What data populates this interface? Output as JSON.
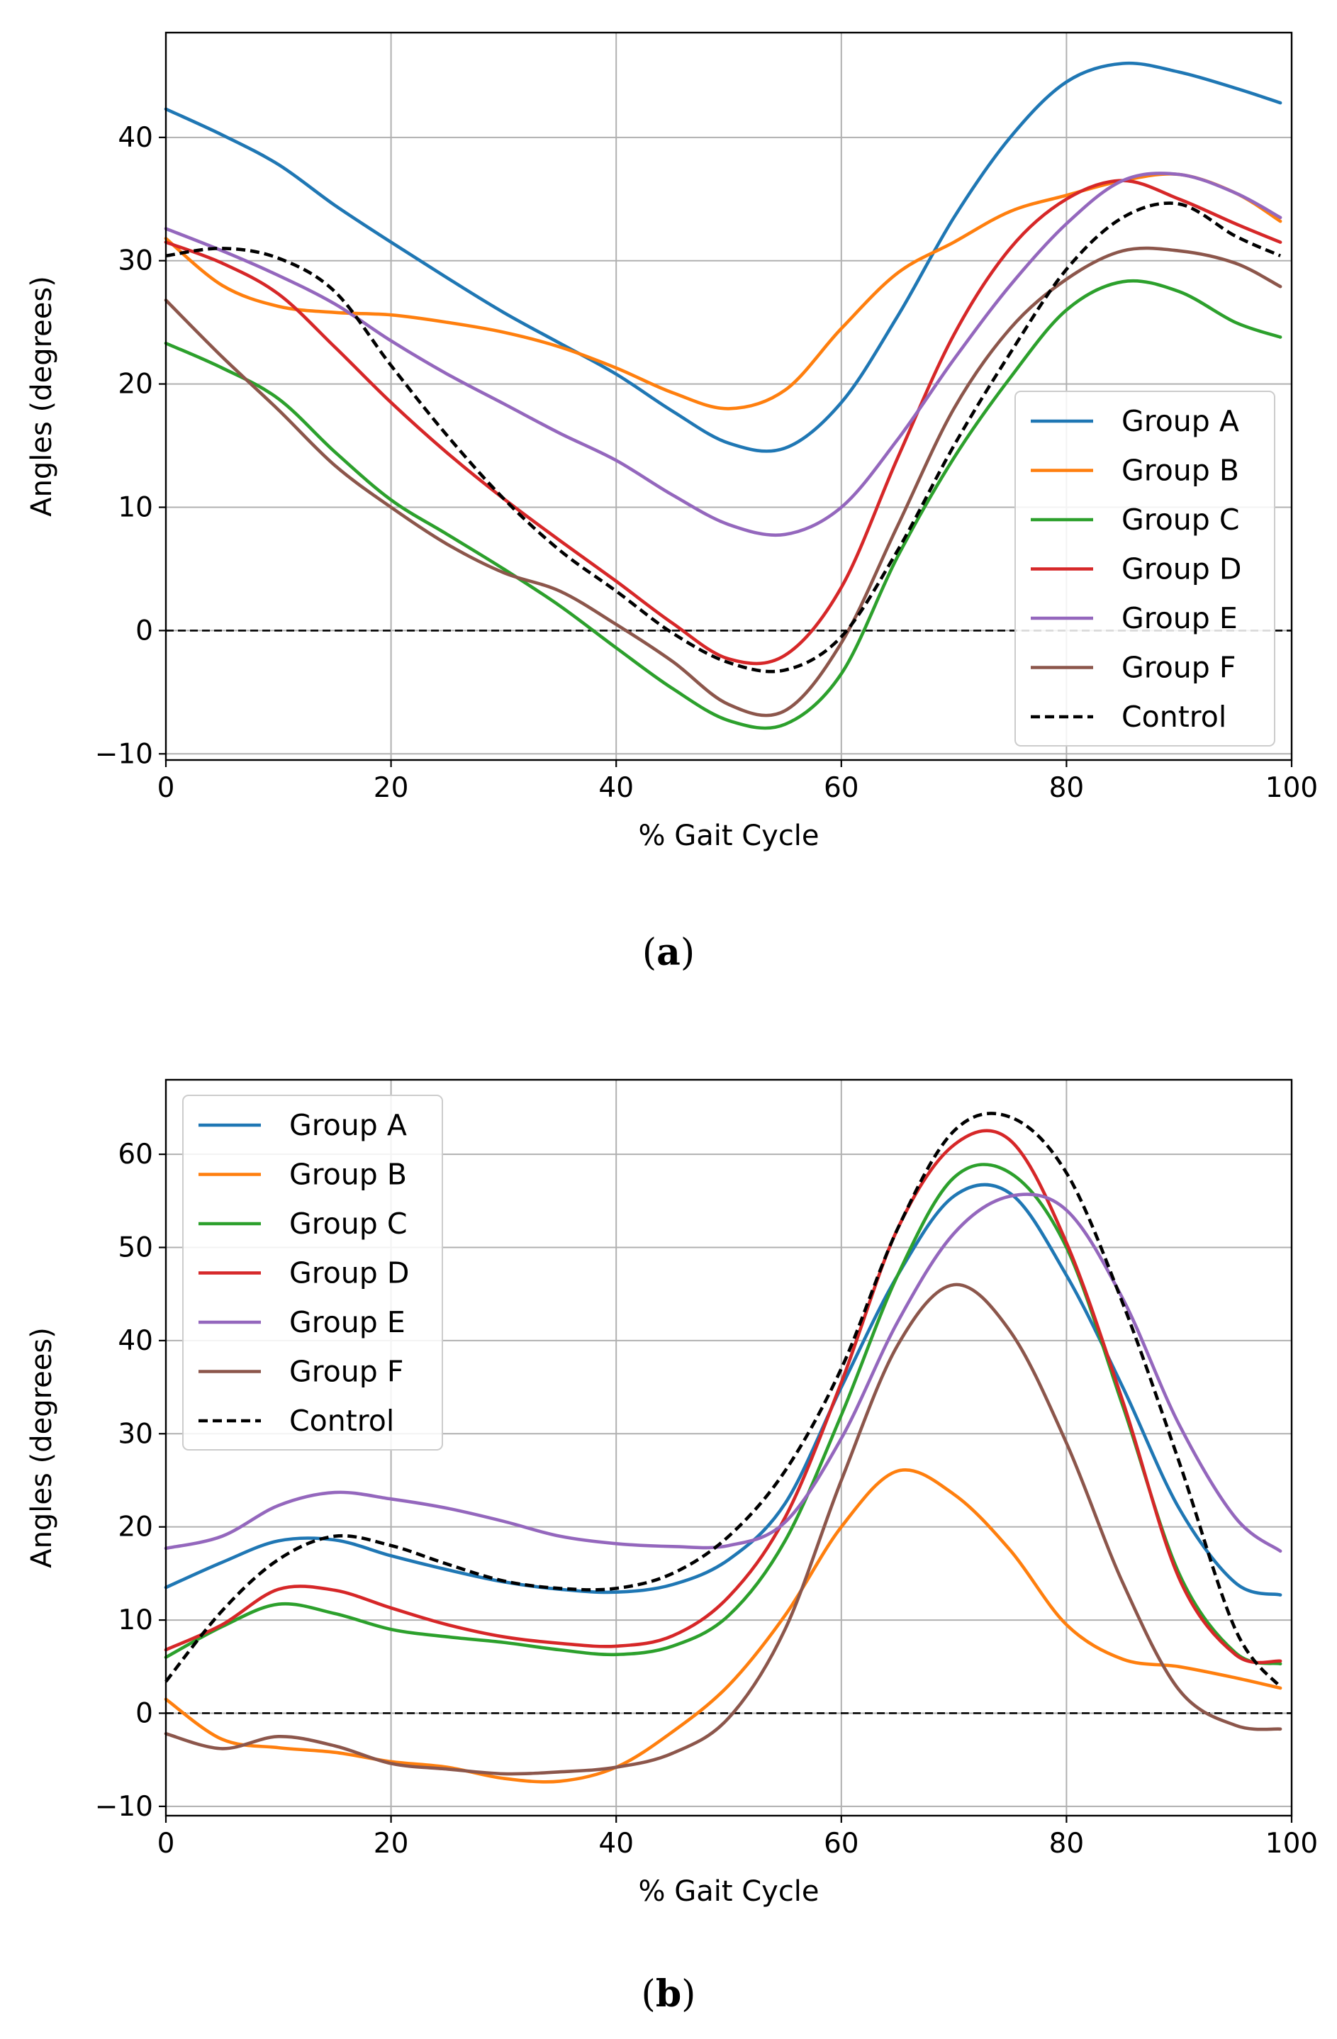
{
  "chart_data": [
    {
      "type": "line",
      "panel_label": "a",
      "xlabel": "% Gait Cycle",
      "ylabel": "Angles (degrees)",
      "xlim": [
        0,
        100
      ],
      "ylim": [
        -10.5,
        48.5
      ],
      "xticks": [
        0,
        20,
        40,
        60,
        80,
        100
      ],
      "yticks": [
        -10,
        0,
        10,
        20,
        30,
        40
      ],
      "ytick_labels": [
        "−10",
        "0",
        "10",
        "20",
        "30",
        "40"
      ],
      "grid": true,
      "legend_position": "lower-right",
      "zero_line": true,
      "x": [
        0,
        5,
        10,
        15,
        20,
        25,
        30,
        35,
        40,
        45,
        50,
        55,
        60,
        65,
        70,
        75,
        80,
        85,
        90,
        95,
        99
      ],
      "series": [
        {
          "name": "Group A",
          "color": "#1f77b4",
          "dashed": false,
          "values": [
            42.3,
            40.2,
            37.8,
            34.5,
            31.5,
            28.6,
            25.8,
            23.3,
            20.8,
            17.8,
            15.2,
            14.8,
            18.5,
            25.5,
            33.5,
            40.0,
            44.5,
            46.0,
            45.3,
            44.0,
            42.8
          ]
        },
        {
          "name": "Group B",
          "color": "#ff7f0e",
          "dashed": false,
          "values": [
            31.8,
            28.0,
            26.3,
            25.8,
            25.6,
            25.0,
            24.2,
            23.0,
            21.3,
            19.3,
            18.0,
            19.5,
            24.5,
            29.0,
            31.5,
            34.0,
            35.3,
            36.5,
            37.0,
            35.5,
            33.2
          ]
        },
        {
          "name": "Group C",
          "color": "#2ca02c",
          "dashed": false,
          "values": [
            23.3,
            21.3,
            18.8,
            14.5,
            10.6,
            7.8,
            5.0,
            2.0,
            -1.4,
            -4.7,
            -7.3,
            -7.6,
            -3.5,
            6.0,
            14.0,
            20.5,
            26.0,
            28.3,
            27.5,
            25.0,
            23.8
          ]
        },
        {
          "name": "Group D",
          "color": "#d62728",
          "dashed": false,
          "values": [
            31.5,
            29.8,
            27.3,
            23.0,
            18.5,
            14.4,
            10.7,
            7.3,
            4.0,
            0.6,
            -2.3,
            -2.0,
            3.5,
            14.0,
            24.0,
            31.0,
            35.0,
            36.5,
            35.0,
            33.0,
            31.5
          ]
        },
        {
          "name": "Group E",
          "color": "#9467bd",
          "dashed": false,
          "values": [
            32.6,
            30.8,
            28.8,
            26.5,
            23.5,
            20.8,
            18.4,
            16.0,
            13.8,
            11.0,
            8.6,
            7.8,
            10.0,
            15.5,
            22.0,
            28.0,
            33.0,
            36.5,
            37.0,
            35.5,
            33.5
          ]
        },
        {
          "name": "Group F",
          "color": "#8c564b",
          "dashed": false,
          "values": [
            26.8,
            22.2,
            17.9,
            13.4,
            10.0,
            7.0,
            4.7,
            3.2,
            0.5,
            -2.5,
            -6.0,
            -6.5,
            -1.0,
            8.5,
            18.0,
            24.5,
            28.5,
            30.8,
            30.8,
            29.8,
            27.9
          ]
        },
        {
          "name": "Control",
          "color": "#000000",
          "dashed": true,
          "values": [
            30.4,
            31.0,
            30.2,
            27.5,
            21.5,
            15.8,
            10.7,
            6.5,
            3.2,
            -0.2,
            -2.6,
            -3.2,
            -0.5,
            6.5,
            15.0,
            22.5,
            29.3,
            33.5,
            34.6,
            32.0,
            30.4
          ]
        }
      ]
    },
    {
      "type": "line",
      "panel_label": "b",
      "xlabel": "% Gait Cycle",
      "ylabel": "Angles (degrees)",
      "xlim": [
        0,
        100
      ],
      "ylim": [
        -11,
        68
      ],
      "xticks": [
        0,
        20,
        40,
        60,
        80,
        100
      ],
      "yticks": [
        -10,
        0,
        10,
        20,
        30,
        40,
        50,
        60
      ],
      "ytick_labels": [
        "−10",
        "0",
        "10",
        "20",
        "30",
        "40",
        "50",
        "60"
      ],
      "grid": true,
      "legend_position": "upper-left",
      "zero_line": true,
      "x": [
        0,
        5,
        10,
        15,
        20,
        25,
        30,
        35,
        40,
        45,
        50,
        55,
        60,
        65,
        70,
        75,
        80,
        85,
        90,
        95,
        99
      ],
      "series": [
        {
          "name": "Group A",
          "color": "#1f77b4",
          "dashed": false,
          "values": [
            13.5,
            16.2,
            18.5,
            18.6,
            16.9,
            15.4,
            14.1,
            13.3,
            13.0,
            13.8,
            16.5,
            22.5,
            35.0,
            47.0,
            55.5,
            55.8,
            47.0,
            35.0,
            22.0,
            14.0,
            12.7
          ]
        },
        {
          "name": "Group B",
          "color": "#ff7f0e",
          "dashed": false,
          "values": [
            1.5,
            -2.8,
            -3.7,
            -4.2,
            -5.2,
            -5.8,
            -7.0,
            -7.3,
            -5.8,
            -2.0,
            3.0,
            10.5,
            20.0,
            26.0,
            23.5,
            17.5,
            9.5,
            5.8,
            5.0,
            3.8,
            2.7
          ]
        },
        {
          "name": "Group C",
          "color": "#2ca02c",
          "dashed": false,
          "values": [
            6.0,
            9.3,
            11.7,
            10.7,
            9.0,
            8.2,
            7.6,
            6.8,
            6.3,
            7.2,
            10.5,
            18.5,
            32.0,
            47.0,
            57.5,
            58.0,
            50.0,
            33.0,
            15.0,
            6.5,
            5.3
          ]
        },
        {
          "name": "Group D",
          "color": "#d62728",
          "dashed": false,
          "values": [
            6.8,
            9.5,
            13.3,
            13.2,
            11.3,
            9.5,
            8.2,
            7.5,
            7.2,
            8.3,
            12.5,
            21.0,
            35.5,
            52.0,
            61.0,
            61.5,
            50.5,
            33.5,
            14.5,
            6.3,
            5.6
          ]
        },
        {
          "name": "Group E",
          "color": "#9467bd",
          "dashed": false,
          "values": [
            17.7,
            19.0,
            22.3,
            23.7,
            23.0,
            22.0,
            20.6,
            19.0,
            18.2,
            17.9,
            18.0,
            20.5,
            29.5,
            42.0,
            51.5,
            55.5,
            54.0,
            44.5,
            31.0,
            21.0,
            17.4
          ]
        },
        {
          "name": "Group F",
          "color": "#8c564b",
          "dashed": false,
          "values": [
            -2.2,
            -3.8,
            -2.5,
            -3.5,
            -5.4,
            -6.0,
            -6.5,
            -6.3,
            -5.8,
            -4.3,
            -0.5,
            9.0,
            25.0,
            39.5,
            46.0,
            41.0,
            29.0,
            14.0,
            2.5,
            -1.3,
            -1.7
          ]
        },
        {
          "name": "Control",
          "color": "#000000",
          "dashed": true,
          "values": [
            3.4,
            11.0,
            16.5,
            19.0,
            18.0,
            16.0,
            14.2,
            13.4,
            13.4,
            15.0,
            19.0,
            26.0,
            37.0,
            52.0,
            62.5,
            64.0,
            58.0,
            44.0,
            27.0,
            9.0,
            2.8
          ]
        }
      ]
    }
  ]
}
